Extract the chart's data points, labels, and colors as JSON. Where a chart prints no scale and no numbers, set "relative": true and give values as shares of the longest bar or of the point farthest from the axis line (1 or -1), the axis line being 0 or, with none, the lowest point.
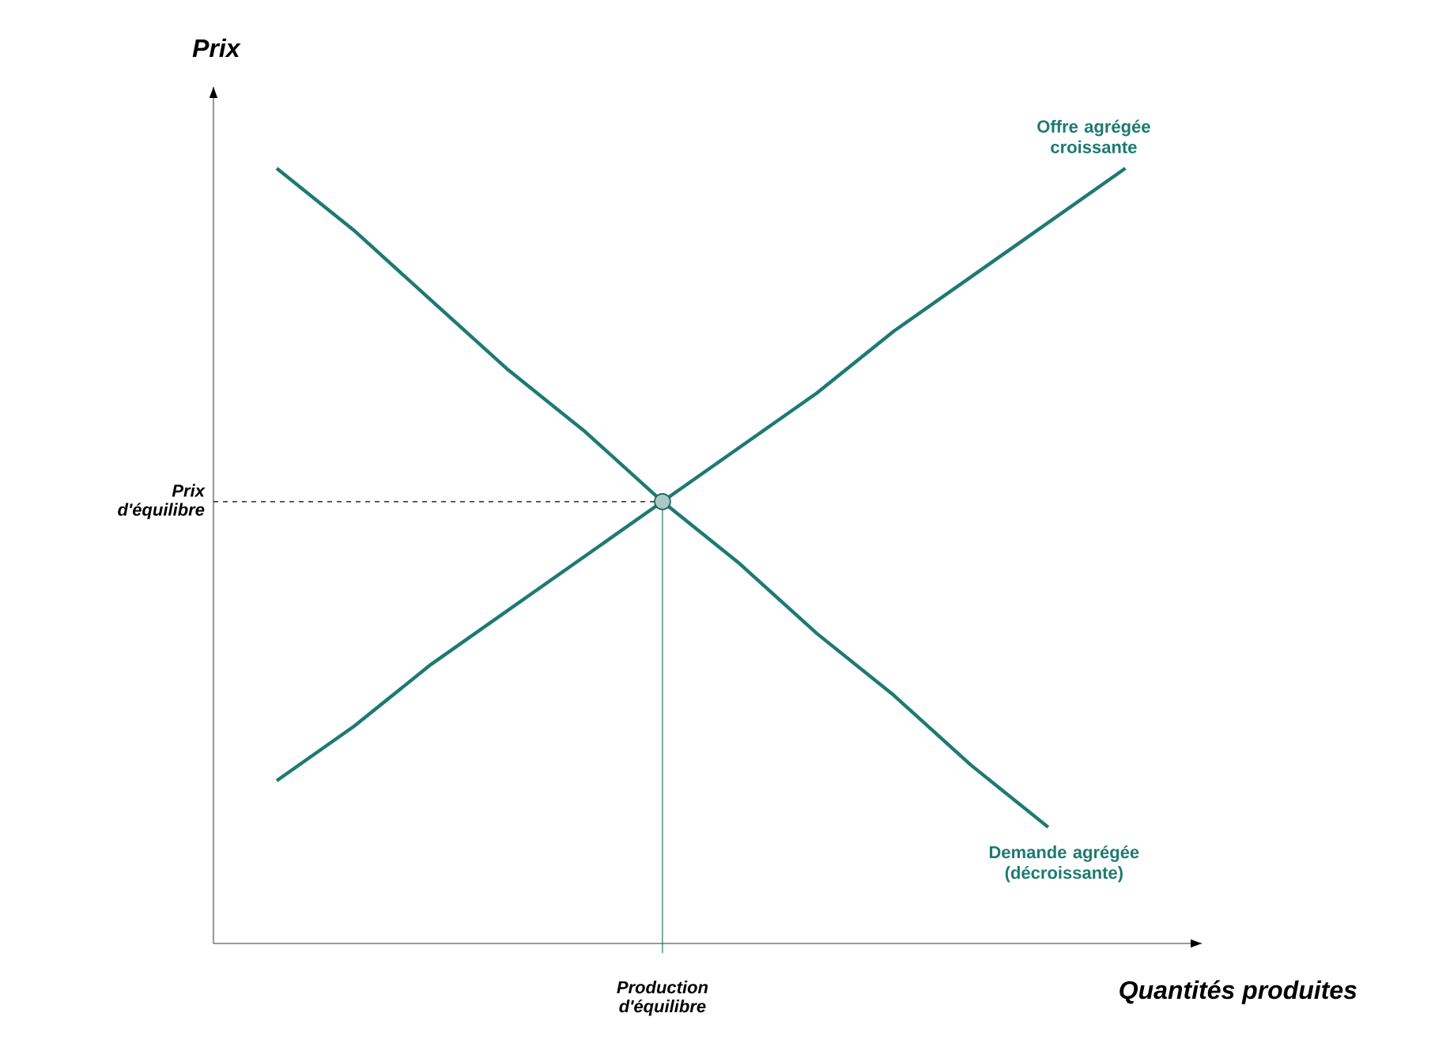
{
  "chart_data": {
    "type": "line",
    "relative": true,
    "xlabel": "Quantités produites",
    "ylabel": "Prix",
    "categories": [
      null,
      null,
      null,
      null,
      null,
      null,
      null,
      null,
      null,
      null,
      null,
      null
    ],
    "series": [
      {
        "name": "Offre agrégée croissante",
        "color": "#1e7a73",
        "values": [
          0.21,
          0.28,
          0.36,
          0.43,
          0.5,
          0.57,
          0.64,
          0.71,
          0.79,
          0.86,
          0.93,
          1.0
        ]
      },
      {
        "name": "Demande agrégée (décroissante)",
        "color": "#1e7a73",
        "values": [
          1.0,
          0.92,
          0.83,
          0.74,
          0.66,
          0.57,
          0.49,
          0.4,
          0.32,
          0.23,
          0.15,
          null
        ]
      }
    ],
    "annotations": [
      "Prix d'équilibre",
      "Production d'équilibre"
    ]
  }
}
